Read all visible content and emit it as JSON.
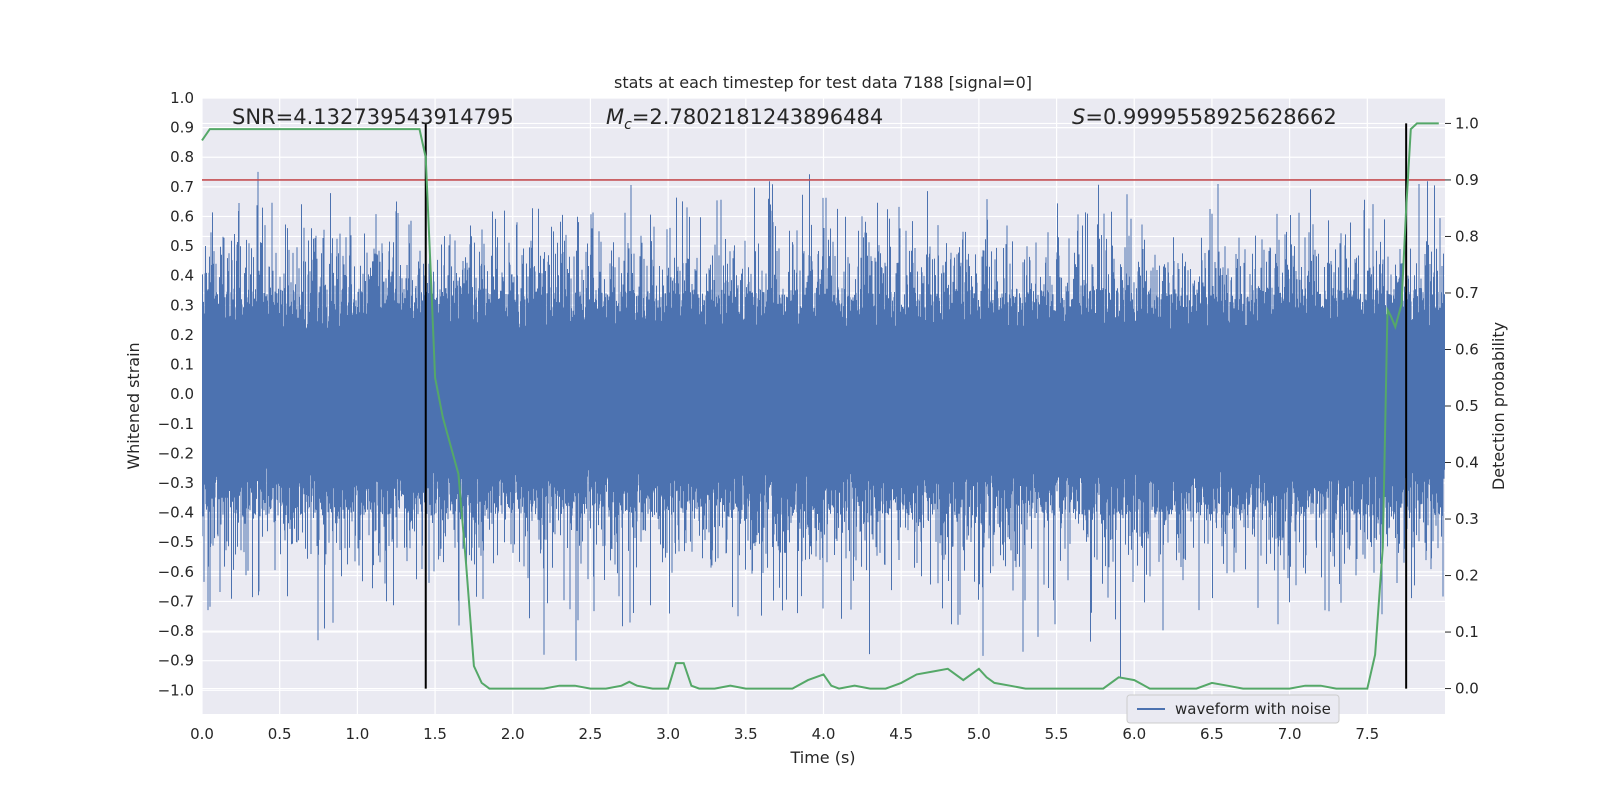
{
  "chart_data": {
    "type": "line",
    "title": "stats at each timestep for test data 7188 [signal=0]",
    "xlabel": "Time (s)",
    "ylabel": "Whitened strain",
    "y2label": "Detection probability",
    "xlim": [
      0.0,
      8.0
    ],
    "ylim": [
      -1.08,
      1.0
    ],
    "y2lim": [
      -0.045,
      1.045
    ],
    "xticks": [
      "0.0",
      "0.5",
      "1.0",
      "1.5",
      "2.0",
      "2.5",
      "3.0",
      "3.5",
      "4.0",
      "4.5",
      "5.0",
      "5.5",
      "6.0",
      "6.5",
      "7.0",
      "7.5"
    ],
    "yticks": [
      "1.0",
      "0.9",
      "0.8",
      "0.7",
      "0.6",
      "0.5",
      "0.4",
      "0.3",
      "0.2",
      "0.1",
      "0.0",
      "−0.1",
      "−0.2",
      "−0.3",
      "−0.4",
      "−0.5",
      "−0.6",
      "−0.7",
      "−0.8",
      "−0.9",
      "−1.0"
    ],
    "y2ticks": [
      "1.0",
      "0.9",
      "0.8",
      "0.7",
      "0.6",
      "0.5",
      "0.4",
      "0.3",
      "0.2",
      "0.1",
      "0.0"
    ],
    "annotations": {
      "snr": "SNR=4.132739543914795",
      "mc_prefix": "M",
      "mc_sub": "c",
      "mc_value": "=2.7802181243896484",
      "s_prefix": "S",
      "s_value": "=0.9999558925628662"
    },
    "threshold_prob": 0.9,
    "vlines_x": [
      1.44,
      7.75
    ],
    "legend": {
      "label": "waveform with noise",
      "placement": "lower-right"
    },
    "series": [
      {
        "name": "waveform with noise",
        "color": "#4c72b0",
        "description": "dense whitened noise strain sampled at 4096 Hz; rendered procedurally between approximately -1.0 and 0.95"
      },
      {
        "name": "detection probability",
        "color": "#55a868",
        "x": [
          0.0,
          0.05,
          0.1,
          0.2,
          0.4,
          0.6,
          0.8,
          1.0,
          1.2,
          1.4,
          1.44,
          1.47,
          1.5,
          1.55,
          1.6,
          1.65,
          1.7,
          1.75,
          1.8,
          1.85,
          1.9,
          2.0,
          2.1,
          2.2,
          2.3,
          2.4,
          2.5,
          2.6,
          2.7,
          2.75,
          2.8,
          2.9,
          3.0,
          3.05,
          3.1,
          3.15,
          3.2,
          3.3,
          3.4,
          3.5,
          3.6,
          3.7,
          3.8,
          3.9,
          4.0,
          4.05,
          4.1,
          4.2,
          4.3,
          4.4,
          4.5,
          4.6,
          4.7,
          4.8,
          4.9,
          5.0,
          5.05,
          5.1,
          5.2,
          5.3,
          5.4,
          5.5,
          5.6,
          5.7,
          5.8,
          5.9,
          6.0,
          6.1,
          6.2,
          6.3,
          6.4,
          6.5,
          6.6,
          6.7,
          6.8,
          6.9,
          7.0,
          7.1,
          7.2,
          7.3,
          7.4,
          7.5,
          7.55,
          7.6,
          7.63,
          7.65,
          7.68,
          7.72,
          7.75,
          7.78,
          7.82,
          7.9,
          7.96
        ],
        "y": [
          0.97,
          0.99,
          0.99,
          0.99,
          0.99,
          0.99,
          0.99,
          0.99,
          0.99,
          0.99,
          0.94,
          0.75,
          0.55,
          0.48,
          0.43,
          0.38,
          0.22,
          0.04,
          0.01,
          0.0,
          0.0,
          0.0,
          0.0,
          0.0,
          0.005,
          0.005,
          0.0,
          0.0,
          0.005,
          0.012,
          0.005,
          0.0,
          0.0,
          0.045,
          0.045,
          0.005,
          0.0,
          0.0,
          0.005,
          0.0,
          0.0,
          0.0,
          0.0,
          0.015,
          0.025,
          0.005,
          0.0,
          0.005,
          0.0,
          0.0,
          0.01,
          0.025,
          0.03,
          0.035,
          0.015,
          0.035,
          0.02,
          0.01,
          0.005,
          0.0,
          0.0,
          0.0,
          0.0,
          0.0,
          0.0,
          0.02,
          0.015,
          0.0,
          0.0,
          0.0,
          0.0,
          0.01,
          0.005,
          0.0,
          0.0,
          0.0,
          0.0,
          0.005,
          0.005,
          0.0,
          0.0,
          0.0,
          0.06,
          0.25,
          0.67,
          0.66,
          0.64,
          0.68,
          0.85,
          0.99,
          1.0,
          1.0,
          1.0
        ]
      }
    ]
  },
  "colors": {
    "background": "#eaeaf2",
    "grid": "#ffffff",
    "strain": "#4c72b0",
    "probability": "#55a868",
    "threshold": "#c44e52",
    "vline": "#000000"
  }
}
